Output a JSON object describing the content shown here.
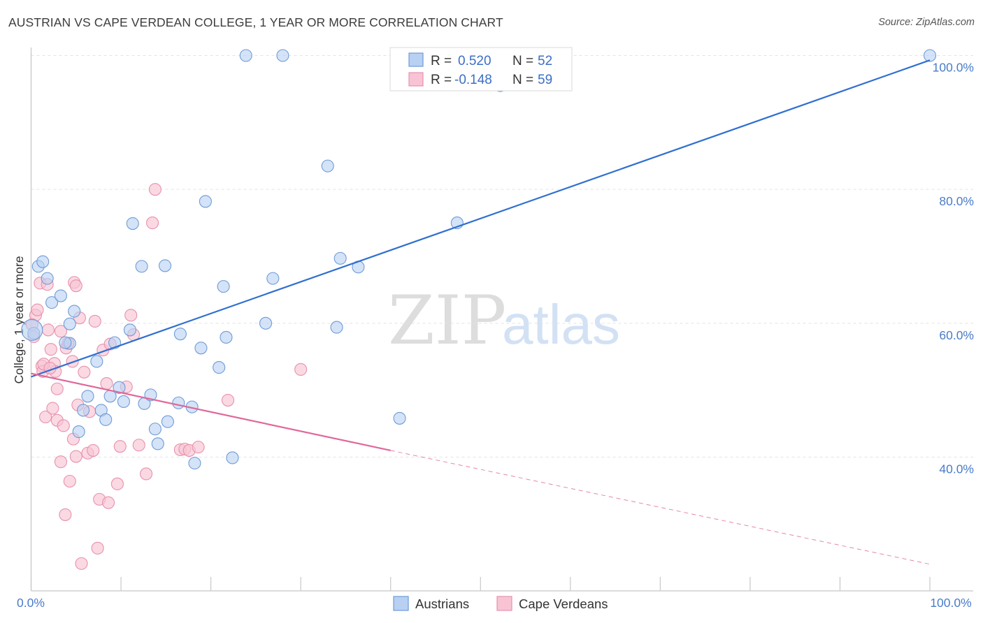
{
  "title": "AUSTRIAN VS CAPE VERDEAN COLLEGE, 1 YEAR OR MORE CORRELATION CHART",
  "source": "Source: ZipAtlas.com",
  "watermark": {
    "zip": "ZIP",
    "atlas": "atlas"
  },
  "chart_data": {
    "type": "scatter",
    "title": "AUSTRIAN VS CAPE VERDEAN COLLEGE, 1 YEAR OR MORE CORRELATION CHART",
    "ylabel": "College, 1 year or more",
    "xlabel": "",
    "xlim": [
      0,
      100
    ],
    "ylim": [
      22,
      102
    ],
    "x_tick_labels": {
      "left": "0.0%",
      "right": "100.0%"
    },
    "y_ticks": [
      {
        "value": 100,
        "label": "100.0%"
      },
      {
        "value": 80,
        "label": "80.0%"
      },
      {
        "value": 60,
        "label": "60.0%"
      },
      {
        "value": 40,
        "label": "40.0%"
      }
    ],
    "grid": true,
    "colors": {
      "austrians_fill": "#b8d0f2",
      "austrians_stroke": "#6f9bd8",
      "austrians_line": "#2f6fd0",
      "capeverdeans_fill": "#f8c4d4",
      "capeverdeans_stroke": "#e891ad",
      "capeverdeans_line": "#e0679a"
    },
    "legend": {
      "rows": [
        {
          "r_label": "R =",
          "r_value": "0.520",
          "n_label": "N =",
          "n_value": "52"
        },
        {
          "r_label": "R =",
          "r_value": "-0.148",
          "n_label": "N =",
          "n_value": "59"
        }
      ]
    },
    "series": [
      {
        "name": "Austrians",
        "trend": {
          "x0": 0,
          "y0": 52.0,
          "x1": 100,
          "y1": 99.3
        },
        "points": [
          [
            0.3,
            58.5
          ],
          [
            0.8,
            68.5
          ],
          [
            1.3,
            69.2
          ],
          [
            1.8,
            66.7
          ],
          [
            2.3,
            63.1
          ],
          [
            3.3,
            64.1
          ],
          [
            4.3,
            57.0
          ],
          [
            4.3,
            59.9
          ],
          [
            4.8,
            61.8
          ],
          [
            3.8,
            57.1
          ],
          [
            5.3,
            43.8
          ],
          [
            5.8,
            47.0
          ],
          [
            6.3,
            49.1
          ],
          [
            7.3,
            54.3
          ],
          [
            7.8,
            47.0
          ],
          [
            8.3,
            45.6
          ],
          [
            8.8,
            49.1
          ],
          [
            9.3,
            57.1
          ],
          [
            9.8,
            50.4
          ],
          [
            10.3,
            48.3
          ],
          [
            11.0,
            59.0
          ],
          [
            11.3,
            74.9
          ],
          [
            12.3,
            68.5
          ],
          [
            12.6,
            48.0
          ],
          [
            13.3,
            49.3
          ],
          [
            13.8,
            44.2
          ],
          [
            14.1,
            42.0
          ],
          [
            14.9,
            68.6
          ],
          [
            15.2,
            45.3
          ],
          [
            16.4,
            48.1
          ],
          [
            16.6,
            58.4
          ],
          [
            17.9,
            47.5
          ],
          [
            18.2,
            39.1
          ],
          [
            18.9,
            56.3
          ],
          [
            19.4,
            78.2
          ],
          [
            20.9,
            53.4
          ],
          [
            21.4,
            65.5
          ],
          [
            21.7,
            57.9
          ],
          [
            22.4,
            39.9
          ],
          [
            23.9,
            100.0
          ],
          [
            26.1,
            60.0
          ],
          [
            26.9,
            66.7
          ],
          [
            28.0,
            100.0
          ],
          [
            33.0,
            83.5
          ],
          [
            34.0,
            59.4
          ],
          [
            34.4,
            69.7
          ],
          [
            36.4,
            68.4
          ],
          [
            41.0,
            45.8
          ],
          [
            47.4,
            75.0
          ],
          [
            52.2,
            95.5
          ],
          [
            100.0,
            100.0
          ],
          [
            0.1,
            59.0
          ]
        ]
      },
      {
        "name": "Cape Verdeans",
        "trend": {
          "x0": 0,
          "y0": 52.5,
          "x1": 40.0,
          "y1": 41.0,
          "dash_x1": 100,
          "dash_y1": 24.0
        },
        "points": [
          [
            0.3,
            58.0
          ],
          [
            0.5,
            61.2
          ],
          [
            0.7,
            62.0
          ],
          [
            1.0,
            66.0
          ],
          [
            1.2,
            53.6
          ],
          [
            1.3,
            52.8
          ],
          [
            1.6,
            46.0
          ],
          [
            1.8,
            65.8
          ],
          [
            1.9,
            59.0
          ],
          [
            2.2,
            56.1
          ],
          [
            2.4,
            47.3
          ],
          [
            2.6,
            54.0
          ],
          [
            2.7,
            52.8
          ],
          [
            2.9,
            50.2
          ],
          [
            2.9,
            45.5
          ],
          [
            3.3,
            39.3
          ],
          [
            3.3,
            58.8
          ],
          [
            3.6,
            44.7
          ],
          [
            3.8,
            31.4
          ],
          [
            3.9,
            56.3
          ],
          [
            4.1,
            57.0
          ],
          [
            4.3,
            36.4
          ],
          [
            4.6,
            54.3
          ],
          [
            4.7,
            42.7
          ],
          [
            4.8,
            66.1
          ],
          [
            5.0,
            65.6
          ],
          [
            5.0,
            40.1
          ],
          [
            5.2,
            47.8
          ],
          [
            5.4,
            60.8
          ],
          [
            5.6,
            24.1
          ],
          [
            5.9,
            52.7
          ],
          [
            6.3,
            40.6
          ],
          [
            6.5,
            46.8
          ],
          [
            6.9,
            41.0
          ],
          [
            7.1,
            60.3
          ],
          [
            7.4,
            26.4
          ],
          [
            7.6,
            33.7
          ],
          [
            8.0,
            56.0
          ],
          [
            8.4,
            51.0
          ],
          [
            8.6,
            33.2
          ],
          [
            8.8,
            56.9
          ],
          [
            9.6,
            36.0
          ],
          [
            9.9,
            41.6
          ],
          [
            10.6,
            50.5
          ],
          [
            11.1,
            61.2
          ],
          [
            11.4,
            58.3
          ],
          [
            12.0,
            41.8
          ],
          [
            12.8,
            37.5
          ],
          [
            13.5,
            75.0
          ],
          [
            13.8,
            80.0
          ],
          [
            16.6,
            41.1
          ],
          [
            17.1,
            41.2
          ],
          [
            17.6,
            41.0
          ],
          [
            18.6,
            41.5
          ],
          [
            21.9,
            48.5
          ],
          [
            30.0,
            53.1
          ],
          [
            0.1,
            59.8
          ],
          [
            1.4,
            53.9
          ],
          [
            2.1,
            53.3
          ]
        ]
      }
    ]
  },
  "bottom_legend": [
    {
      "label": "Austrians"
    },
    {
      "label": "Cape Verdeans"
    }
  ]
}
